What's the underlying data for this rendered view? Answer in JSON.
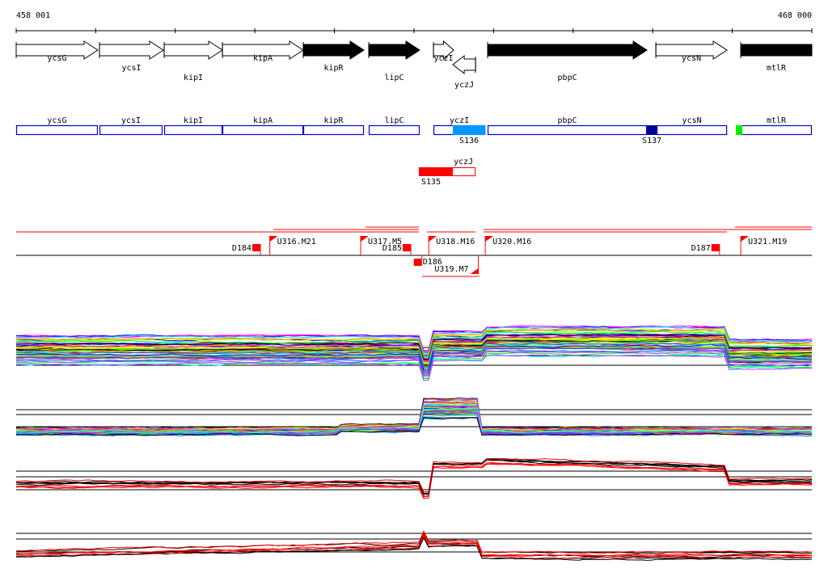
{
  "axis": {
    "start_label": "458 001",
    "end_label": "468 000",
    "start": 458001,
    "end": 468000,
    "tick_step": 1000
  },
  "genes": [
    {
      "name": "ycsG",
      "start": 458001,
      "end": 459027,
      "strand": "+",
      "fill": "#ffffff",
      "label_row": 0
    },
    {
      "name": "ycsI",
      "start": 459048,
      "end": 459851,
      "strand": "+",
      "fill": "#ffffff",
      "label_row": 1
    },
    {
      "name": "kipI",
      "start": 459861,
      "end": 460593,
      "strand": "+",
      "fill": "#ffffff",
      "label_row": 2
    },
    {
      "name": "kipA",
      "start": 460593,
      "end": 461609,
      "strand": "+",
      "fill": "#ffffff",
      "label_row": 0
    },
    {
      "name": "kipR",
      "start": 461609,
      "end": 462371,
      "strand": "+",
      "fill": "#000000",
      "label_row": 1
    },
    {
      "name": "lipC",
      "start": 462432,
      "end": 463072,
      "strand": "+",
      "fill": "#000000",
      "label_row": 2
    },
    {
      "name": "yczI",
      "start": 463245,
      "end": 463499,
      "strand": "+",
      "fill": "#ffffff",
      "label_row": 0
    },
    {
      "name": "yczJ",
      "start": 463489,
      "end": 463774,
      "strand": "-",
      "fill": "#ffffff",
      "label_row": 3
    },
    {
      "name": "pbpC",
      "start": 463926,
      "end": 465928,
      "strand": "+",
      "fill": "#000000",
      "label_row": 2
    },
    {
      "name": "ycsN",
      "start": 466040,
      "end": 466934,
      "strand": "+",
      "fill": "#ffffff",
      "label_row": 0
    },
    {
      "name": "mtlR",
      "start": 467107,
      "end": 468000,
      "strand": "+",
      "fill": "#000000",
      "label_row": 1
    }
  ],
  "gene_boxes": [
    {
      "name": "ycsG",
      "start": 458001,
      "end": 459027
    },
    {
      "name": "ycsI",
      "start": 459048,
      "end": 459840
    },
    {
      "name": "kipI",
      "start": 459861,
      "end": 460593
    },
    {
      "name": "kipA",
      "start": 460593,
      "end": 461609
    },
    {
      "name": "kipR",
      "start": 461609,
      "end": 462371
    },
    {
      "name": "lipC",
      "start": 462432,
      "end": 463072
    },
    {
      "name": "yczI",
      "start": 463245,
      "end": 463896
    },
    {
      "name": "pbpC",
      "start": 463926,
      "end": 465928
    },
    {
      "name": "ycsN",
      "start": 466050,
      "end": 466934
    },
    {
      "name": "mtlR",
      "start": 467107,
      "end": 468000
    }
  ],
  "segments": [
    {
      "name": "S136",
      "start": 463489,
      "end": 463896,
      "color": "#0099ff",
      "track": 1
    },
    {
      "name": "S137",
      "start": 465928,
      "end": 466050,
      "color": "#000099",
      "track": 1
    },
    {
      "name": "",
      "start": 467046,
      "end": 467127,
      "color": "#00ee00",
      "track": 1
    },
    {
      "name": "S135",
      "start": 463062,
      "end": 463489,
      "color": "#ff0000",
      "track": 2
    }
  ],
  "antisense_box": {
    "name": "yczJ",
    "start": 463062,
    "end": 463774,
    "color": "#ff0000"
  },
  "transcription": {
    "downshifts": [
      {
        "name": "D184",
        "pos": 461070
      },
      {
        "name": "D185",
        "pos": 462960
      },
      {
        "name": "D186",
        "pos": 463100
      },
      {
        "name": "D187",
        "pos": 466840
      }
    ],
    "upshifts": [
      {
        "name": "U316.M21",
        "pos": 461188,
        "end": 463000,
        "strand": "+"
      },
      {
        "name": "U317.M5",
        "pos": 462330,
        "end": 463000,
        "strand": "+"
      },
      {
        "name": "U318.M16",
        "pos": 463186,
        "end": 463800,
        "strand": "+"
      },
      {
        "name": "U319.M7",
        "pos": 463809,
        "end": 463042,
        "strand": "-"
      },
      {
        "name": "U320.M16",
        "pos": 463896,
        "end": 468000,
        "strand": "+"
      },
      {
        "name": "U321.M19",
        "pos": 467107,
        "end": 468000,
        "strand": "+"
      }
    ],
    "color": "#ff0000"
  },
  "colors": {
    "gene_box": "#0000dd",
    "feature": "#ff0000"
  }
}
